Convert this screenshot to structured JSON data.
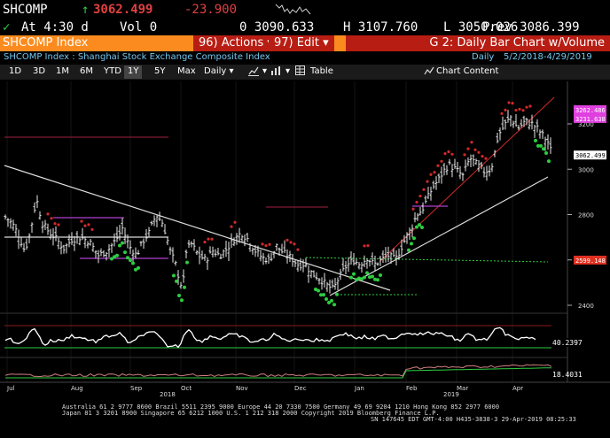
{
  "quote": {
    "ticker": "SHCOMP",
    "last": "3062.499",
    "change": "-23.900",
    "at_time": "At 4:30 d",
    "vol": "Vol 0",
    "open": "0 3090.633",
    "high": "H 3107.760",
    "low": "L 3050.026",
    "prev": "Prev 3086.399"
  },
  "title_bar": {
    "security": "SHCOMP Index",
    "actions_num": "96",
    "actions_label": "Actions",
    "edit_num": "97",
    "edit_label": "Edit",
    "chart_title": "G 2: Daily Bar Chart w/Volume"
  },
  "security_line": {
    "description": "SHCOMP Index : Shanghai Stock Exchange Composite Index",
    "period": "Daily",
    "range": "5/2/2018-4/29/2019"
  },
  "toolbar": {
    "ranges": [
      "1D",
      "3D",
      "1M",
      "6M",
      "YTD",
      "1Y",
      "5Y",
      "Max"
    ],
    "selected_range": "1Y",
    "frequency": "Daily",
    "table_label": "Table",
    "chart_content_label": "Chart Content"
  },
  "chart_data": {
    "type": "bar",
    "price_axis": {
      "ticks": [
        "3200",
        "3000",
        "2800",
        "2600",
        "2400"
      ],
      "ylim": [
        2370,
        3300
      ]
    },
    "price_tags": [
      {
        "label": "3262.486",
        "color": "#e040e0"
      },
      {
        "label": "3231.638",
        "color": "#e040e0"
      },
      {
        "label": "3062.499",
        "color": "#ffffff"
      },
      {
        "label": "2599.148",
        "color": "#e03020"
      }
    ],
    "indicator_tag": "40.2397",
    "volume_tag": "18.4031",
    "months": [
      "Jul",
      "Aug",
      "Sep",
      "Oct",
      "Nov",
      "Dec",
      "Jan",
      "Feb",
      "Mar",
      "Apr"
    ],
    "years": [
      "2018",
      "2019"
    ],
    "close_path": [
      [
        0,
        2790
      ],
      [
        8,
        2760
      ],
      [
        15,
        2710
      ],
      [
        22,
        2640
      ],
      [
        28,
        2720
      ],
      [
        35,
        2870
      ],
      [
        42,
        2760
      ],
      [
        50,
        2720
      ],
      [
        58,
        2690
      ],
      [
        66,
        2650
      ],
      [
        75,
        2690
      ],
      [
        85,
        2700
      ],
      [
        95,
        2680
      ],
      [
        105,
        2620
      ],
      [
        115,
        2640
      ],
      [
        125,
        2690
      ],
      [
        132,
        2740
      ],
      [
        140,
        2660
      ],
      [
        148,
        2620
      ],
      [
        155,
        2680
      ],
      [
        162,
        2720
      ],
      [
        170,
        2800
      ],
      [
        178,
        2760
      ],
      [
        186,
        2640
      ],
      [
        192,
        2580
      ],
      [
        196,
        2520
      ],
      [
        200,
        2470
      ],
      [
        204,
        2640
      ],
      [
        210,
        2670
      ],
      [
        218,
        2620
      ],
      [
        226,
        2600
      ],
      [
        234,
        2640
      ],
      [
        242,
        2620
      ],
      [
        250,
        2650
      ],
      [
        258,
        2690
      ],
      [
        266,
        2720
      ],
      [
        274,
        2690
      ],
      [
        282,
        2640
      ],
      [
        290,
        2610
      ],
      [
        298,
        2600
      ],
      [
        306,
        2660
      ],
      [
        314,
        2630
      ],
      [
        322,
        2610
      ],
      [
        330,
        2580
      ],
      [
        338,
        2580
      ],
      [
        346,
        2540
      ],
      [
        354,
        2520
      ],
      [
        362,
        2490
      ],
      [
        370,
        2470
      ],
      [
        376,
        2520
      ],
      [
        384,
        2570
      ],
      [
        392,
        2600
      ],
      [
        400,
        2580
      ],
      [
        408,
        2610
      ],
      [
        416,
        2580
      ],
      [
        424,
        2600
      ],
      [
        432,
        2620
      ],
      [
        440,
        2600
      ],
      [
        446,
        2650
      ],
      [
        452,
        2700
      ],
      [
        458,
        2740
      ],
      [
        464,
        2800
      ],
      [
        470,
        2820
      ],
      [
        476,
        2870
      ],
      [
        482,
        2920
      ],
      [
        488,
        2950
      ],
      [
        494,
        2990
      ],
      [
        500,
        3020
      ],
      [
        508,
        3000
      ],
      [
        516,
        2970
      ],
      [
        524,
        3050
      ],
      [
        532,
        3020
      ],
      [
        540,
        2990
      ],
      [
        548,
        3000
      ],
      [
        556,
        3150
      ],
      [
        564,
        3200
      ],
      [
        570,
        3230
      ],
      [
        578,
        3180
      ],
      [
        586,
        3210
      ],
      [
        594,
        3200
      ],
      [
        600,
        3180
      ],
      [
        606,
        3150
      ],
      [
        612,
        3120
      ],
      [
        617,
        3062
      ]
    ]
  },
  "footer": {
    "line1": "Australia 61 2 9777 8600  Brazil 5511 2395 9000  Europe 44 20 7330 7500  Germany 49 69 9204 1210  Hong Kong 852 2977 6000",
    "line2": "Japan 81 3 3201 8900       Singapore 65 6212 1000       U.S. 1 212 318 2000        Copyright 2019 Bloomberg Finance L.P.",
    "line3": "SN 147645 EDT  GMT-4:00 H435-3838-3 29-Apr-2019 08:25:33"
  },
  "colors": {
    "orange": "#fb8b1e",
    "red": "#b81d13",
    "green": "#2ecc40",
    "blue_text": "#74c6ef",
    "magenta": "#e040e0"
  }
}
